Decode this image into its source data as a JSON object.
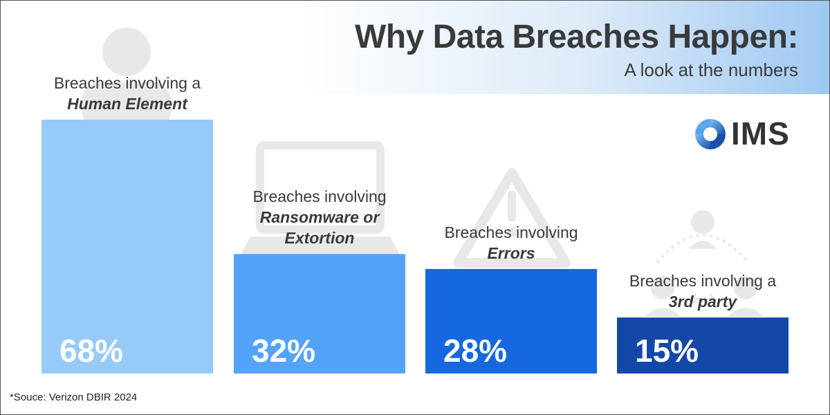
{
  "header": {
    "title": "Why Data Breaches Happen:",
    "subtitle": "A look at the numbers"
  },
  "logo": {
    "text": "IMS",
    "icon": "ims-swirl-icon"
  },
  "colors": {
    "bar_1": "#96caf9",
    "bar_2": "#54a3fa",
    "bar_3": "#1568e0",
    "bar_4": "#1448a8",
    "icon_gray": "#e8e8e8"
  },
  "chart_data": {
    "type": "bar",
    "categories": [
      "Breaches involving a Human Element",
      "Breaches involving Ransomware or Extortion",
      "Breaches involving Errors",
      "Breaches involving a 3rd party"
    ],
    "values": [
      68,
      32,
      28,
      15
    ],
    "value_labels": [
      "68%",
      "32%",
      "28%",
      "15%"
    ],
    "ylim": [
      0,
      100
    ],
    "grid": false,
    "labels": [
      {
        "line1": "Breaches involving a",
        "emph1": "Human Element",
        "emph2": ""
      },
      {
        "line1": "Breaches involving",
        "emph1": "Ransomware or",
        "emph2": "Extortion"
      },
      {
        "line1": "Breaches involving",
        "emph1": "Errors",
        "emph2": ""
      },
      {
        "line1": "Breaches involving a",
        "emph1": "3rd party",
        "emph2": ""
      }
    ],
    "icons": [
      "person-icon",
      "laptop-icon",
      "warning-icon",
      "third-party-icon"
    ]
  },
  "footer": {
    "source": "*Souce: Verizon DBIR 2024"
  }
}
